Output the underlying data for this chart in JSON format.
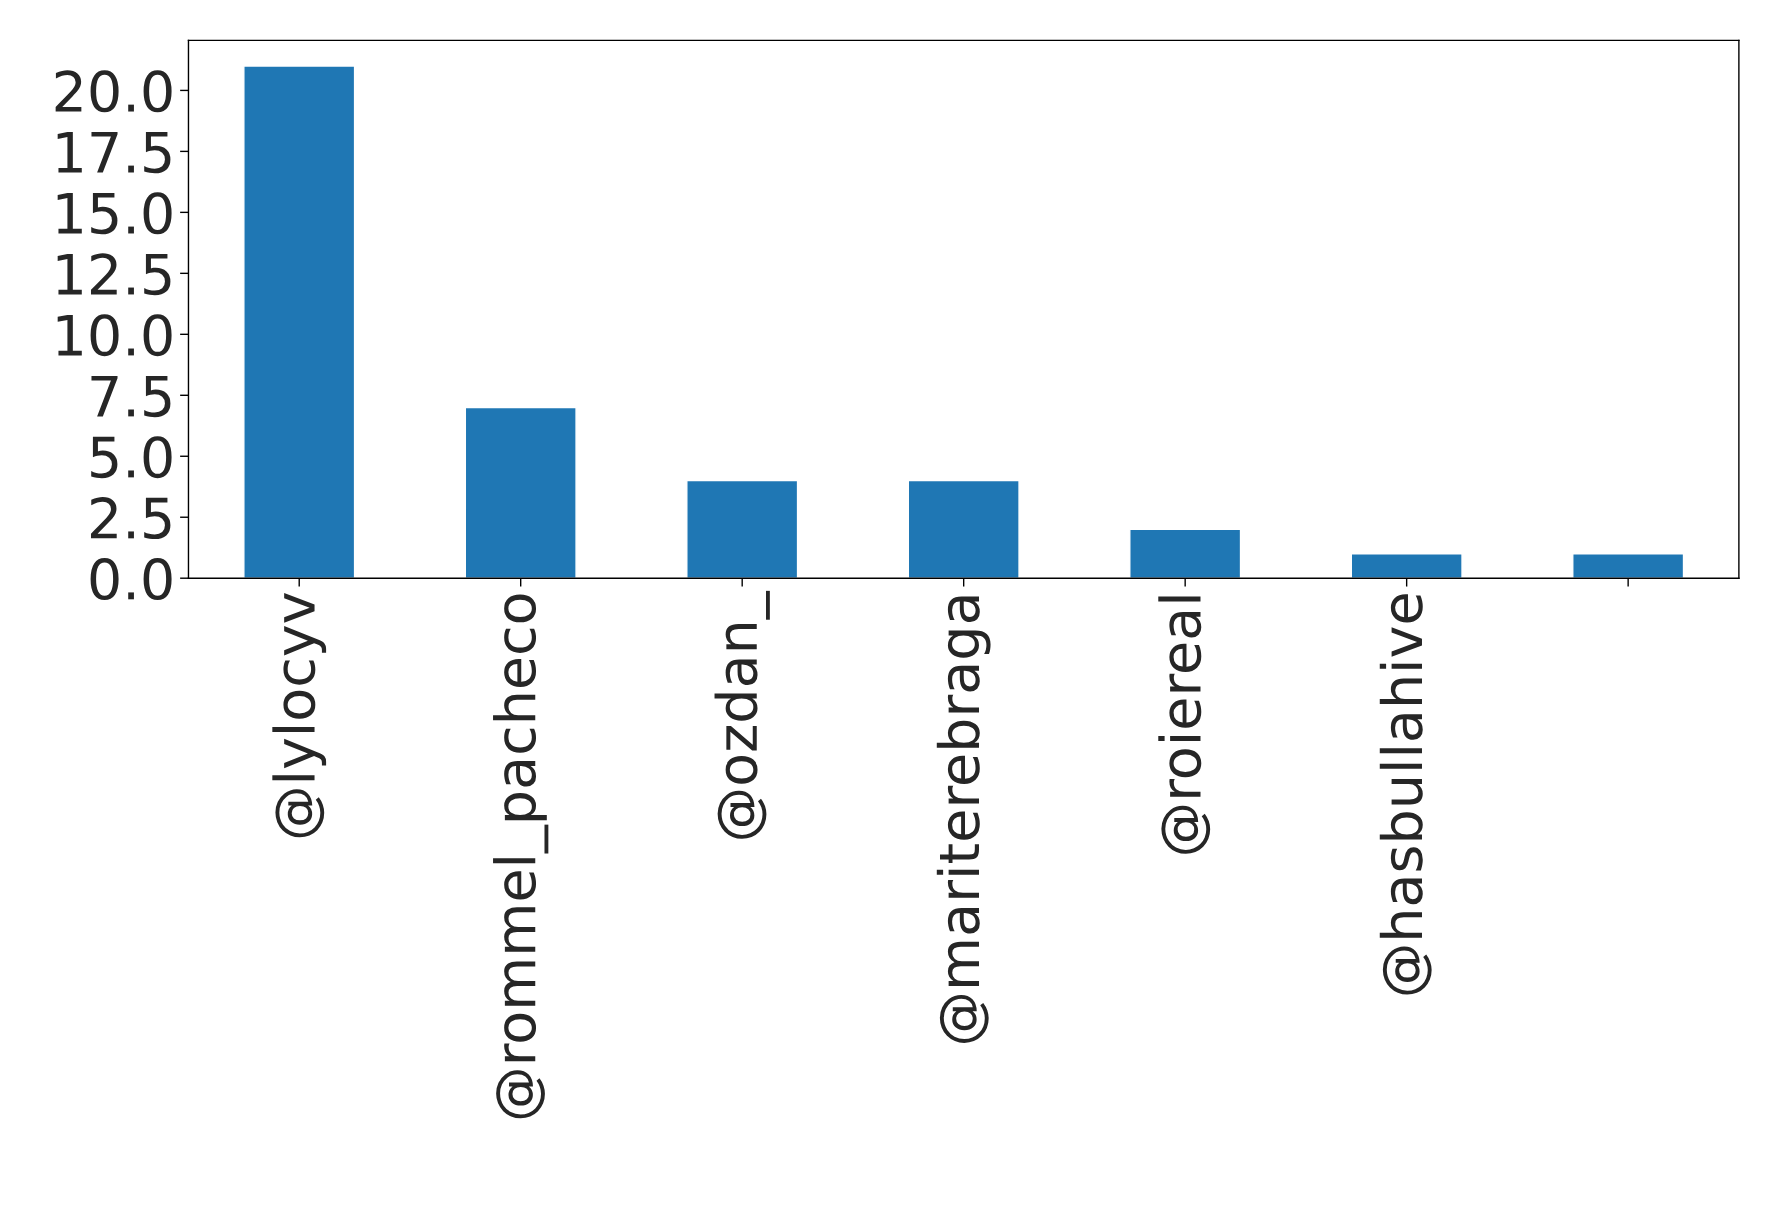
{
  "chart_data": {
    "type": "bar",
    "categories": [
      "@lylocyv",
      "@rommel_pacheco",
      "@ozdan_",
      "@mariterebraga",
      "@roiereal",
      "@hasbullahive",
      null
    ],
    "values": [
      21,
      7,
      4,
      4,
      2,
      1,
      1
    ],
    "color": "#1f77b4",
    "ylim": [
      0,
      22.05
    ],
    "yticks": [
      {
        "value": 0,
        "label": "0.0"
      },
      {
        "value": 2.5,
        "label": "2.5"
      },
      {
        "value": 5,
        "label": "5.0"
      },
      {
        "value": 7.5,
        "label": "7.5"
      },
      {
        "value": 10,
        "label": "10.0"
      },
      {
        "value": 12.5,
        "label": "12.5"
      },
      {
        "value": 15,
        "label": "15.0"
      },
      {
        "value": 17.5,
        "label": "17.5"
      },
      {
        "value": 20,
        "label": "20.0"
      }
    ],
    "grid": false,
    "legend": false
  }
}
